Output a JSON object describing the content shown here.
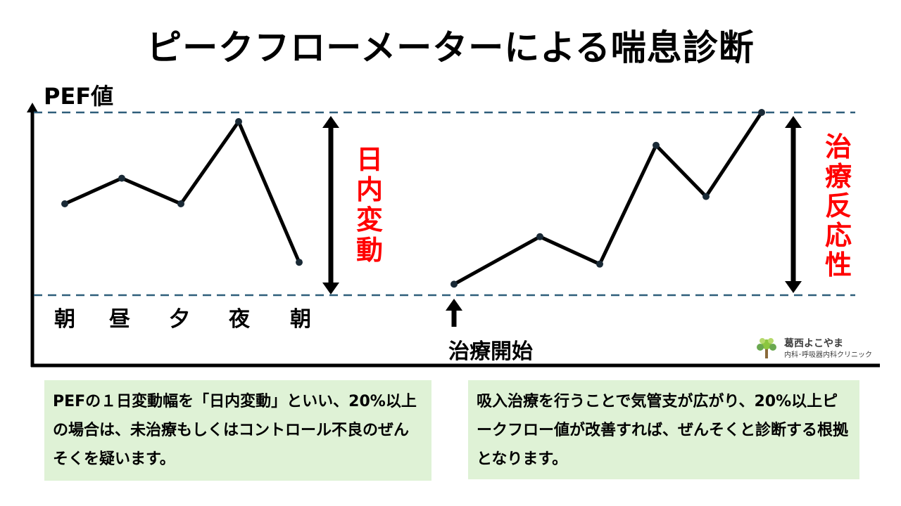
{
  "title": "ピークフローメーターによる喘息診断",
  "diagram": {
    "y_axis_label": "PEF値",
    "time_labels": [
      "朝",
      "昼",
      "夕",
      "夜",
      "朝"
    ],
    "left_series": [
      0.5,
      0.64,
      0.5,
      0.95,
      0.18
    ],
    "right_series": [
      0.06,
      0.32,
      0.17,
      0.82,
      0.54,
      1.0
    ],
    "left_range_label": "日内変動",
    "right_range_label": "治療反応性",
    "treatment_start_label": "治療開始",
    "colors": {
      "line": "#000000",
      "dashed": "#2e5e7a",
      "accent_text": "#ff0000",
      "box_bg": "#dff2d6"
    }
  },
  "notes": {
    "left": "PEFの１日変動幅を「日内変動」といい、20%以上の場合は、未治療もしくはコントロール不良のぜんそくを疑います。",
    "right": "吸入治療を行うことで気管支が広がり、20%以上ピークフロー値が改善すれば、ぜんそくと診断する根拠となります。"
  },
  "logo": {
    "name": "葛西よこやま",
    "subtitle": "内科･呼吸器内科クリニック"
  }
}
